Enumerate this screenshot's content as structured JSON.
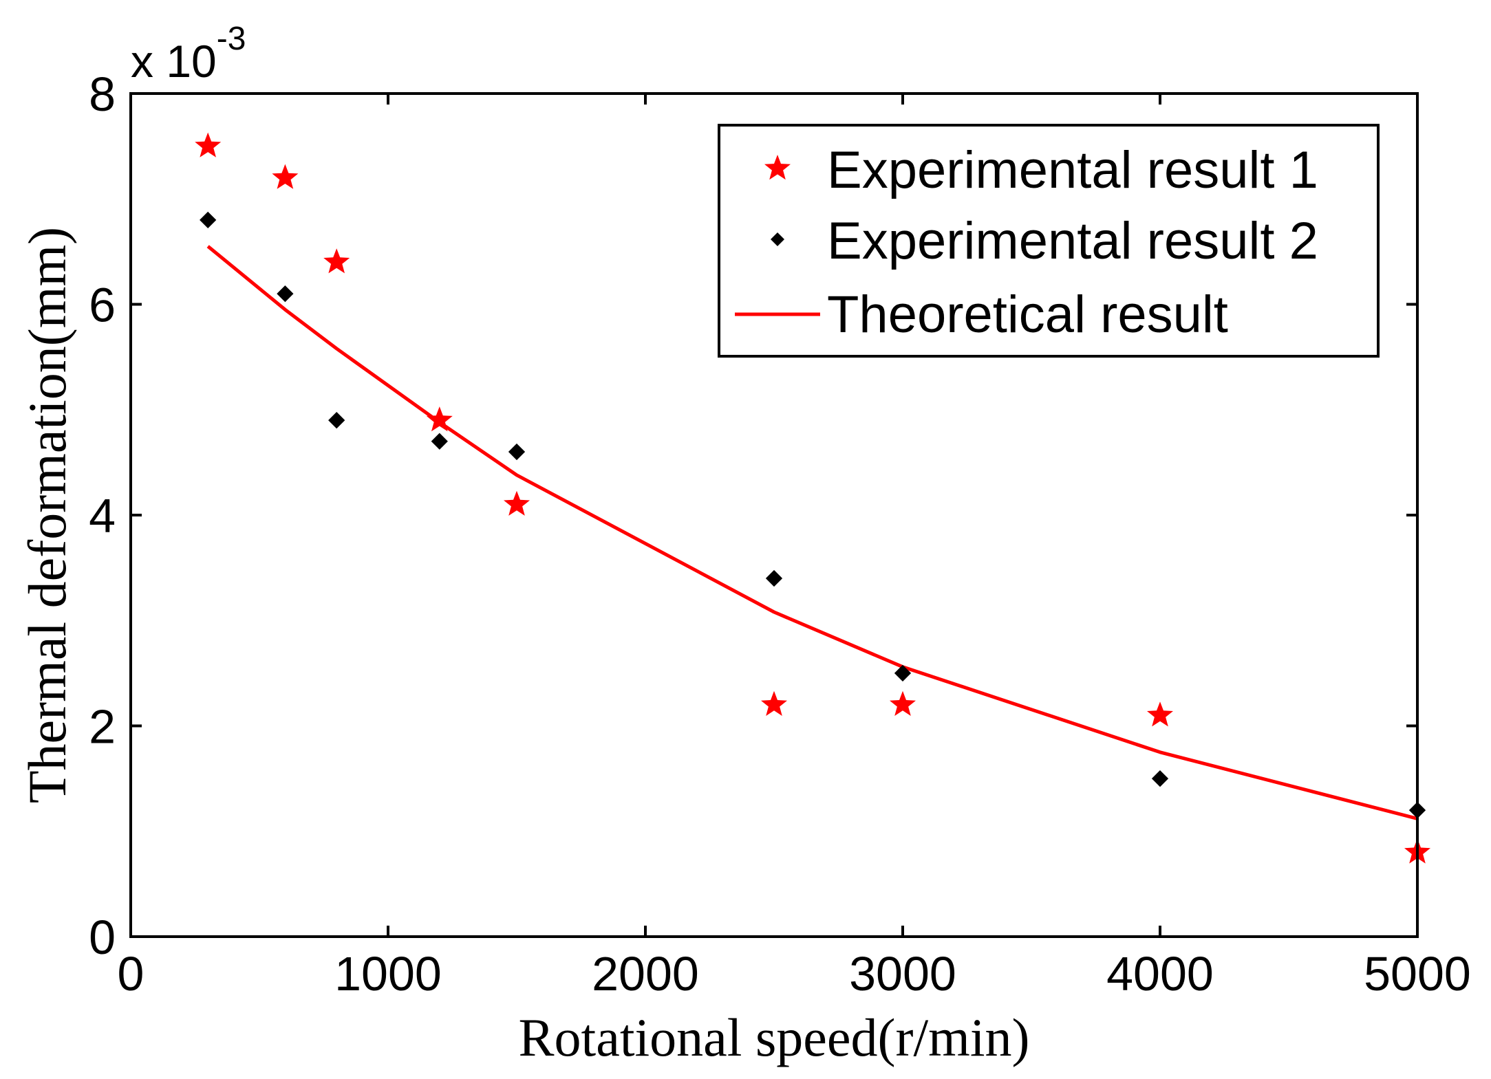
{
  "chart_data": {
    "type": "scatter",
    "title": "",
    "xlabel": "Rotational speed(r/min)",
    "ylabel": "Thermal deformation(mm)",
    "xlim": [
      0,
      5000
    ],
    "ylim": [
      0,
      8
    ],
    "y_exponent_base": "x 10",
    "y_exponent_power": "-3",
    "x_ticks": [
      0,
      1000,
      2000,
      3000,
      4000,
      5000
    ],
    "y_ticks": [
      0,
      2,
      4,
      6,
      8
    ],
    "x_tick_labels": [
      "0",
      "1000",
      "2000",
      "3000",
      "4000",
      "5000"
    ],
    "y_tick_labels": [
      "0",
      "2",
      "4",
      "6",
      "8"
    ],
    "grid": false,
    "legend_position": "top-right",
    "colors": {
      "red": "#ff0000",
      "black": "#000000"
    },
    "series": [
      {
        "name": "Experimental result 1",
        "type": "scatter",
        "marker": "star",
        "color": "#ff0000",
        "x": [
          300,
          600,
          800,
          1200,
          1500,
          2500,
          3000,
          4000,
          5000
        ],
        "y": [
          7.5,
          7.2,
          6.4,
          4.9,
          4.1,
          2.2,
          2.2,
          2.1,
          0.8
        ]
      },
      {
        "name": "Experimental result 2",
        "type": "scatter",
        "marker": "diamond",
        "color": "#000000",
        "x": [
          300,
          600,
          800,
          1200,
          1500,
          2500,
          3000,
          4000,
          5000
        ],
        "y": [
          6.8,
          6.1,
          4.9,
          4.7,
          4.6,
          3.4,
          2.5,
          1.5,
          1.2
        ]
      },
      {
        "name": "Theoretical result",
        "type": "line",
        "marker": "none",
        "color": "#ff0000",
        "x": [
          300,
          600,
          800,
          1200,
          1500,
          2500,
          3000,
          4000,
          5000
        ],
        "y": [
          6.55,
          5.95,
          5.58,
          4.88,
          4.38,
          3.08,
          2.56,
          1.75,
          1.12
        ]
      }
    ]
  }
}
